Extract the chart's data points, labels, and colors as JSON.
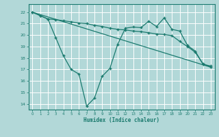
{
  "xlabel": "Humidex (Indice chaleur)",
  "bg_color": "#b2d8d8",
  "grid_color": "#ffffff",
  "line_color": "#1a7a6e",
  "xlim": [
    -0.5,
    23.5
  ],
  "ylim": [
    13.5,
    22.7
  ],
  "yticks": [
    14,
    15,
    16,
    17,
    18,
    19,
    20,
    21,
    22
  ],
  "xticks": [
    0,
    1,
    2,
    3,
    4,
    5,
    6,
    7,
    8,
    9,
    10,
    11,
    12,
    13,
    14,
    15,
    16,
    17,
    18,
    19,
    20,
    21,
    22,
    23
  ],
  "line1_x": [
    0,
    23
  ],
  "line1_y": [
    22.0,
    17.2
  ],
  "line2_x": [
    0,
    1,
    2,
    3,
    4,
    5,
    6,
    7,
    8,
    9,
    10,
    11,
    12,
    13,
    14,
    15,
    16,
    17,
    18,
    19,
    20,
    21,
    22,
    23
  ],
  "line2_y": [
    22.0,
    21.7,
    21.4,
    21.35,
    21.25,
    21.15,
    21.05,
    21.0,
    20.85,
    20.75,
    20.6,
    20.5,
    20.45,
    20.35,
    20.3,
    20.2,
    20.1,
    20.05,
    19.95,
    19.45,
    19.0,
    18.5,
    17.5,
    17.2
  ],
  "line3_x": [
    0,
    1,
    2,
    3,
    4,
    5,
    6,
    7,
    8,
    9,
    10,
    11,
    12,
    13,
    14,
    15,
    16,
    17,
    18,
    19,
    20,
    21,
    22,
    23
  ],
  "line3_y": [
    22.0,
    21.7,
    21.4,
    19.8,
    18.2,
    17.0,
    16.6,
    13.8,
    14.5,
    16.4,
    17.1,
    19.2,
    20.6,
    20.7,
    20.65,
    21.2,
    20.75,
    21.5,
    20.5,
    20.35,
    19.1,
    18.6,
    17.45,
    17.3
  ]
}
